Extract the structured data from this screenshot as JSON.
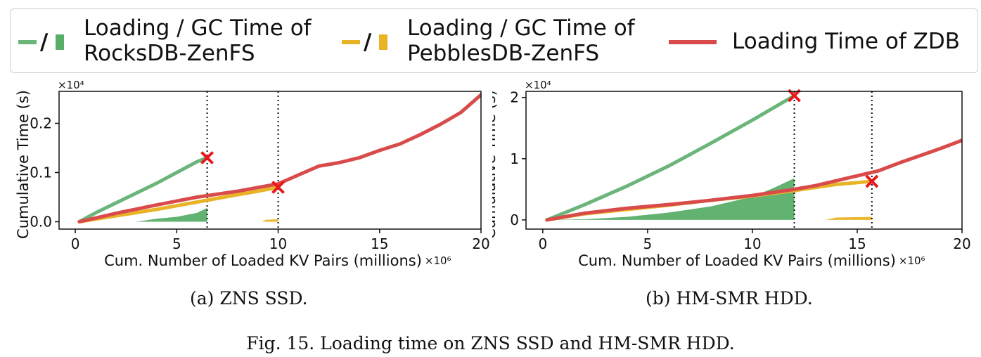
{
  "legend": {
    "entries": [
      {
        "label_line1": "Loading / GC Time of",
        "label_line2": "RocksDB-ZenFS",
        "line_color": "#6bb57b",
        "fill_color": "#5aae6a",
        "slash": "/"
      },
      {
        "label_line1": "Loading / GC Time of",
        "label_line2": "PebblesDB-ZenFS",
        "line_color": "#e8b325",
        "fill_color": "#e8b325",
        "slash": "/"
      },
      {
        "label": "Loading Time of ZDB",
        "line_color": "#d94b4b"
      }
    ]
  },
  "captions": {
    "a": "(a)  ZNS SSD.",
    "b": "(b)  HM-SMR HDD.",
    "figure": "Fig. 15.  Loading time on ZNS SSD and HM-SMR HDD."
  },
  "chart_data": [
    {
      "type": "line",
      "xlabel": "Cum. Number of Loaded KV Pairs (millions)",
      "ylabel": "Cumulative Time (s)",
      "x_multiplier": "×10⁶",
      "y_multiplier": "×10⁴",
      "xlim": [
        -0.8,
        20
      ],
      "ylim": [
        -0.015,
        0.265
      ],
      "xticks": [
        0,
        5,
        10,
        15,
        20
      ],
      "yticks": [
        0.0,
        0.1,
        0.2
      ],
      "ytick_labels": [
        "0.0",
        "0.1",
        "0.2"
      ],
      "vlines": [
        6.5,
        10
      ],
      "series": [
        {
          "role": "rocksdb-loading",
          "color": "#6bb57b",
          "x": [
            0.2,
            1,
            2,
            3,
            4,
            5,
            6,
            6.5
          ],
          "y": [
            0.0,
            0.018,
            0.038,
            0.058,
            0.078,
            0.1,
            0.122,
            0.13
          ]
        },
        {
          "role": "rocksdb-gc",
          "color": "#5aae6a",
          "area": true,
          "x": [
            0.2,
            3,
            4,
            5,
            6,
            6.5
          ],
          "y": [
            0.0,
            0.0,
            0.006,
            0.01,
            0.018,
            0.028
          ]
        },
        {
          "role": "pebblesdb-loading",
          "color": "#e8b325",
          "x": [
            0.2,
            2,
            4,
            6,
            8,
            9,
            10
          ],
          "y": [
            0.0,
            0.012,
            0.025,
            0.04,
            0.055,
            0.062,
            0.07
          ]
        },
        {
          "role": "pebblesdb-gc",
          "color": "#e8b325",
          "area": true,
          "x": [
            0.2,
            6.6,
            9.2,
            9.4,
            10
          ],
          "y": [
            0.0,
            0.0,
            0.0,
            0.004,
            0.005
          ]
        },
        {
          "role": "zdb-loading",
          "color": "#d94b4b",
          "x": [
            0.2,
            2,
            4,
            6,
            8,
            10,
            11,
            12,
            13,
            14,
            15,
            16,
            17,
            18,
            19,
            20
          ],
          "y": [
            0.0,
            0.017,
            0.034,
            0.05,
            0.062,
            0.077,
            0.095,
            0.113,
            0.12,
            0.13,
            0.145,
            0.158,
            0.177,
            0.198,
            0.222,
            0.258
          ]
        }
      ],
      "markers": [
        {
          "x": 6.5,
          "y": 0.13,
          "symbol": "x",
          "color": "#e8191d"
        },
        {
          "x": 10,
          "y": 0.07,
          "symbol": "x",
          "color": "#e8191d"
        }
      ]
    },
    {
      "type": "line",
      "xlabel": "Cum. Number of Loaded KV Pairs (millions)",
      "ylabel": "Cumulative Time (s)",
      "x_multiplier": "×10⁶",
      "y_multiplier": "×10⁴",
      "xlim": [
        -0.8,
        20
      ],
      "ylim": [
        -0.15,
        2.1
      ],
      "xticks": [
        0,
        5,
        10,
        15,
        20
      ],
      "yticks": [
        0,
        1,
        2
      ],
      "ytick_labels": [
        "0",
        "1",
        "2"
      ],
      "vlines": [
        12,
        15.7
      ],
      "series": [
        {
          "role": "rocksdb-loading",
          "color": "#6bb57b",
          "x": [
            0.2,
            2,
            4,
            6,
            8,
            10,
            12
          ],
          "y": [
            0.0,
            0.25,
            0.55,
            0.88,
            1.25,
            1.63,
            2.03
          ]
        },
        {
          "role": "rocksdb-gc",
          "color": "#5aae6a",
          "area": true,
          "x": [
            0.2,
            2,
            4,
            6,
            8,
            10,
            11,
            12
          ],
          "y": [
            0.0,
            0.01,
            0.05,
            0.12,
            0.22,
            0.38,
            0.52,
            0.68
          ]
        },
        {
          "role": "pebblesdb-loading",
          "color": "#e8b325",
          "x": [
            0.2,
            2,
            4,
            6,
            8,
            10,
            12,
            14,
            15.7
          ],
          "y": [
            0.0,
            0.1,
            0.17,
            0.24,
            0.32,
            0.39,
            0.48,
            0.58,
            0.63
          ]
        },
        {
          "role": "pebblesdb-gc",
          "color": "#e8b325",
          "area": true,
          "x": [
            0.2,
            12,
            13.5,
            14,
            15.7
          ],
          "y": [
            0.0,
            0.0,
            0.0,
            0.04,
            0.05
          ]
        },
        {
          "role": "zdb-loading",
          "color": "#d94b4b",
          "x": [
            0.2,
            2,
            4,
            6,
            8,
            10,
            12,
            13,
            14,
            15,
            16,
            17,
            18,
            19,
            20
          ],
          "y": [
            0.0,
            0.11,
            0.19,
            0.25,
            0.32,
            0.4,
            0.5,
            0.56,
            0.64,
            0.72,
            0.8,
            0.93,
            1.05,
            1.17,
            1.3
          ]
        }
      ],
      "markers": [
        {
          "x": 12,
          "y": 2.03,
          "symbol": "x",
          "color": "#e8191d"
        },
        {
          "x": 15.7,
          "y": 0.63,
          "symbol": "x",
          "color": "#e8191d"
        }
      ]
    }
  ]
}
